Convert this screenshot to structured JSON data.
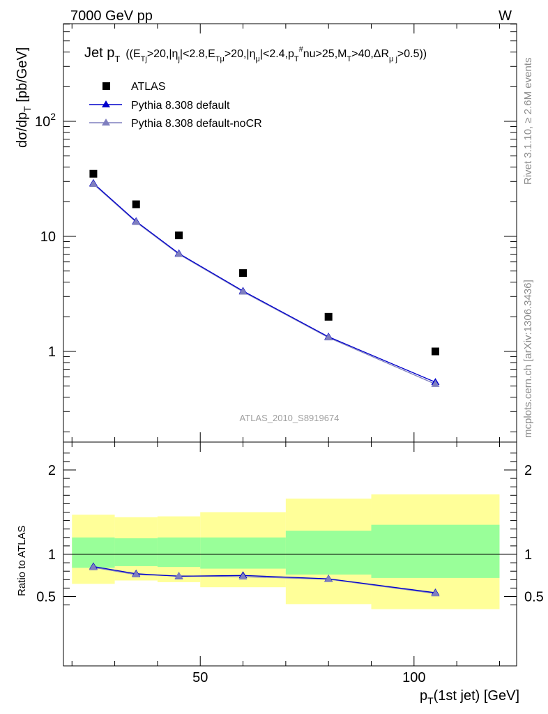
{
  "header": {
    "left": "7000 GeV pp",
    "right": "W"
  },
  "side_text": {
    "rivet": "Rivet 3.1.10, ≥ 2.6M events",
    "source": "mcplots.cern.ch [arXiv:1306.3436]"
  },
  "chart_data": [
    {
      "type": "scatter",
      "title_prefix": "Jet p",
      "title_sub": "T",
      "title_cuts": "((E_Tj>20,|η_j|<2.8,E_Tμ>20,|η_μ|<2.4,p_T^#nu>25,M_T>40,ΔR_μj>0.5))",
      "ylabel": "dσ/dp_T [pb/GeV]",
      "xlabel": "p_T(1st jet) [GeV]",
      "y_scale": "log",
      "ylim": [
        0.18,
        900
      ],
      "xlim": [
        18,
        124
      ],
      "y_ticks": [
        "10^2",
        "10",
        "1"
      ],
      "watermark": "ATLAS_2010_S8919674",
      "legend_position": "top-left",
      "x": [
        25,
        35,
        45,
        60,
        80,
        105
      ],
      "series": [
        {
          "name": "ATLAS",
          "marker": "square",
          "color": "#000000",
          "values": [
            35.0,
            19.0,
            10.2,
            4.8,
            2.0,
            1.0
          ]
        },
        {
          "name": "Pythia 8.308 default",
          "marker": "triangle",
          "color": "#0000cc",
          "values": [
            29.0,
            13.5,
            7.1,
            3.35,
            1.34,
            0.54
          ]
        },
        {
          "name": "Pythia 8.308 default-noCR",
          "marker": "triangle",
          "color": "#7f7fbf",
          "values": [
            28.5,
            13.3,
            7.0,
            3.3,
            1.32,
            0.52
          ]
        }
      ]
    },
    {
      "type": "line",
      "ylabel": "Ratio to ATLAS",
      "xlabel": "p_T(1st jet) [GeV]",
      "ylim": [
        0.35,
        2.3
      ],
      "xlim": [
        18,
        124
      ],
      "x_ticks": [
        "50",
        "100"
      ],
      "y_ticks": [
        "2",
        "1",
        "0.5"
      ],
      "bands": {
        "edges": [
          20,
          30,
          40,
          50,
          70,
          90,
          120
        ],
        "yellow_color": "#ffff99",
        "green_color": "#99ff99",
        "yellow_lo": [
          0.65,
          0.69,
          0.67,
          0.61,
          0.41,
          0.35,
          0.35
        ],
        "yellow_hi": [
          1.47,
          1.44,
          1.45,
          1.5,
          1.66,
          1.71,
          1.71
        ],
        "green_lo": [
          0.84,
          0.86,
          0.85,
          0.83,
          0.76,
          0.72,
          0.72
        ],
        "green_hi": [
          1.2,
          1.19,
          1.2,
          1.2,
          1.28,
          1.35,
          1.35
        ]
      },
      "x": [
        25,
        35,
        45,
        60,
        80,
        105
      ],
      "series": [
        {
          "name": "Pythia 8.308 default",
          "color": "#0000cc",
          "values": [
            0.855,
            0.77,
            0.74,
            0.75,
            0.71,
            0.545
          ]
        },
        {
          "name": "Pythia 8.308 default-noCR",
          "color": "#7f7fbf",
          "values": [
            0.845,
            0.76,
            0.745,
            0.735,
            0.705,
            0.535
          ]
        }
      ]
    }
  ]
}
